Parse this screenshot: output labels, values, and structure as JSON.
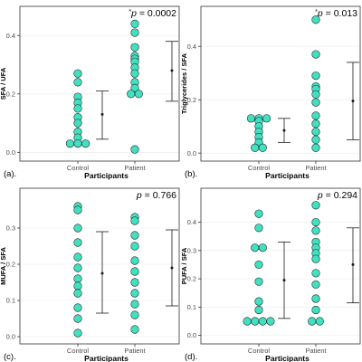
{
  "chart_data": [
    {
      "type": "scatter",
      "panel_label": "(a).",
      "ylabel": "SFA / UFA",
      "xlabel": "Participants",
      "categories": [
        "Control",
        "Patient"
      ],
      "ylim": [
        -0.03,
        0.5
      ],
      "yticks": [
        "0.0",
        "0.2",
        "0.4"
      ],
      "p_prefix": "*",
      "p_text": "p = 0.0002",
      "series": [
        {
          "category": "Control",
          "values": [
            0.27,
            0.24,
            0.19,
            0.17,
            0.15,
            0.12,
            0.1,
            0.07,
            0.05,
            0.03,
            0.03,
            0.03
          ]
        },
        {
          "category": "Patient",
          "values": [
            0.44,
            0.41,
            0.36,
            0.33,
            0.32,
            0.31,
            0.29,
            0.27,
            0.24,
            0.22,
            0.2,
            0.2,
            0.01
          ]
        }
      ],
      "summary": [
        {
          "category": "Control",
          "mean": 0.13,
          "low": 0.045,
          "high": 0.21
        },
        {
          "category": "Patient",
          "mean": 0.28,
          "low": 0.175,
          "high": 0.38
        }
      ]
    },
    {
      "type": "scatter",
      "panel_label": "(b).",
      "ylabel": "Triglycerides / SFA",
      "xlabel": "Participants",
      "categories": [
        "Control",
        "Patient"
      ],
      "ylim": [
        -0.03,
        0.55
      ],
      "yticks": [
        "0.0",
        "0.2",
        "0.4"
      ],
      "p_prefix": "*",
      "p_text": "p = 0.013",
      "series": [
        {
          "category": "Control",
          "values": [
            0.13,
            0.13,
            0.13,
            0.12,
            0.1,
            0.08,
            0.06,
            0.04,
            0.02,
            0.02
          ]
        },
        {
          "category": "Patient",
          "values": [
            0.5,
            0.37,
            0.29,
            0.25,
            0.24,
            0.22,
            0.19,
            0.14,
            0.11,
            0.08,
            0.05,
            0.02
          ]
        }
      ],
      "summary": [
        {
          "category": "Control",
          "mean": 0.085,
          "low": 0.04,
          "high": 0.13
        },
        {
          "category": "Patient",
          "mean": 0.195,
          "low": 0.05,
          "high": 0.34
        }
      ]
    },
    {
      "type": "scatter",
      "panel_label": "(c).",
      "ylabel": "MUFA / SFA",
      "xlabel": "Participants",
      "categories": [
        "Control",
        "Patient"
      ],
      "ylim": [
        -0.02,
        0.41
      ],
      "yticks": [
        "0.0",
        "0.1",
        "0.2",
        "0.3"
      ],
      "p_prefix": "",
      "p_text": "p = 0.766",
      "series": [
        {
          "category": "Control",
          "values": [
            0.36,
            0.35,
            0.3,
            0.26,
            0.22,
            0.19,
            0.16,
            0.14,
            0.12,
            0.08,
            0.05,
            0.01
          ]
        },
        {
          "category": "Patient",
          "values": [
            0.33,
            0.32,
            0.28,
            0.25,
            0.21,
            0.18,
            0.15,
            0.12,
            0.09,
            0.06,
            0.02
          ]
        }
      ],
      "summary": [
        {
          "category": "Control",
          "mean": 0.175,
          "low": 0.065,
          "high": 0.29
        },
        {
          "category": "Patient",
          "mean": 0.19,
          "low": 0.085,
          "high": 0.295
        }
      ]
    },
    {
      "type": "scatter",
      "panel_label": "(d).",
      "ylabel": "PUFA / SFA",
      "xlabel": "Participants",
      "categories": [
        "Control",
        "Patient"
      ],
      "ylim": [
        -0.03,
        0.52
      ],
      "yticks": [
        "0.0",
        "0.1",
        "0.2",
        "0.3",
        "0.4"
      ],
      "p_prefix": "",
      "p_text": "p = 0.294",
      "series": [
        {
          "category": "Control",
          "values": [
            0.43,
            0.38,
            0.31,
            0.31,
            0.25,
            0.19,
            0.12,
            0.09,
            0.05,
            0.05,
            0.05,
            0.05
          ]
        },
        {
          "category": "Patient",
          "values": [
            0.46,
            0.4,
            0.37,
            0.33,
            0.31,
            0.29,
            0.27,
            0.22,
            0.18,
            0.13,
            0.09,
            0.05,
            0.05
          ]
        }
      ],
      "summary": [
        {
          "category": "Control",
          "mean": 0.195,
          "low": 0.06,
          "high": 0.33
        },
        {
          "category": "Patient",
          "mean": 0.25,
          "low": 0.115,
          "high": 0.38
        }
      ]
    }
  ],
  "colors": {
    "point_fill": "#40E0C0",
    "point_stroke": "#1a1a1a",
    "errorbar": "#1a1a1a",
    "frame": "#333333",
    "grid": "#ebebeb"
  }
}
